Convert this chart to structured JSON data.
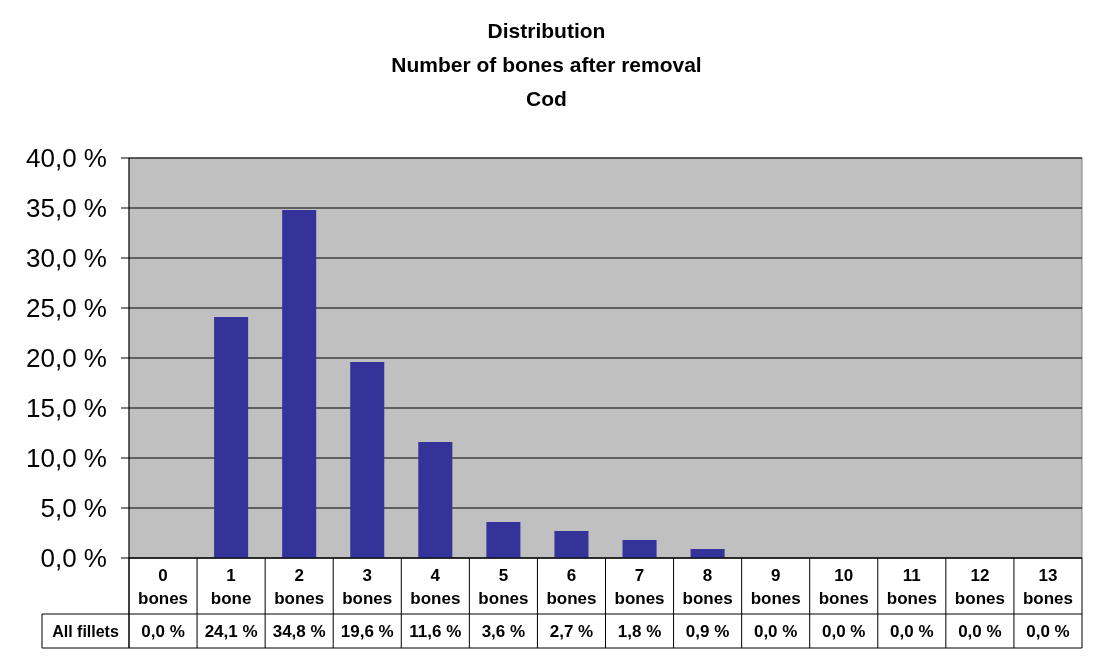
{
  "chart_data": {
    "type": "bar",
    "title": "Distribution\nNumber of bones after removal\nCod",
    "categories": [
      "0\nbones",
      "1\nbone",
      "2\nbones",
      "3\nbones",
      "4\nbones",
      "5\nbones",
      "6\nbones",
      "7\nbones",
      "8\nbones",
      "9\nbones",
      "10\nbones",
      "11\nbones",
      "12\nbones",
      "13\nbones"
    ],
    "series": [
      {
        "name": "All fillets",
        "color": "#333399",
        "values": [
          0.0,
          24.1,
          34.8,
          19.6,
          11.6,
          3.6,
          2.7,
          1.8,
          0.9,
          0.0,
          0.0,
          0.0,
          0.0,
          0.0
        ],
        "value_labels": [
          "0,0 %",
          "24,1 %",
          "34,8 %",
          "19,6 %",
          "11,6 %",
          "3,6 %",
          "2,7 %",
          "1,8 %",
          "0,9 %",
          "0,0 %",
          "0,0 %",
          "0,0 %",
          "0,0 %",
          "0,0 %"
        ]
      }
    ],
    "ylim": [
      0,
      40
    ],
    "yticks": [
      {
        "value": 0,
        "label": "0,0 %"
      },
      {
        "value": 5,
        "label": "5,0 %"
      },
      {
        "value": 10,
        "label": "10,0 %"
      },
      {
        "value": 15,
        "label": "15,0 %"
      },
      {
        "value": 20,
        "label": "20,0 %"
      },
      {
        "value": 25,
        "label": "25,0 %"
      },
      {
        "value": 30,
        "label": "30,0 %"
      },
      {
        "value": 35,
        "label": "35,0 %"
      },
      {
        "value": 40,
        "label": "40,0 %"
      }
    ],
    "grid": "y"
  }
}
